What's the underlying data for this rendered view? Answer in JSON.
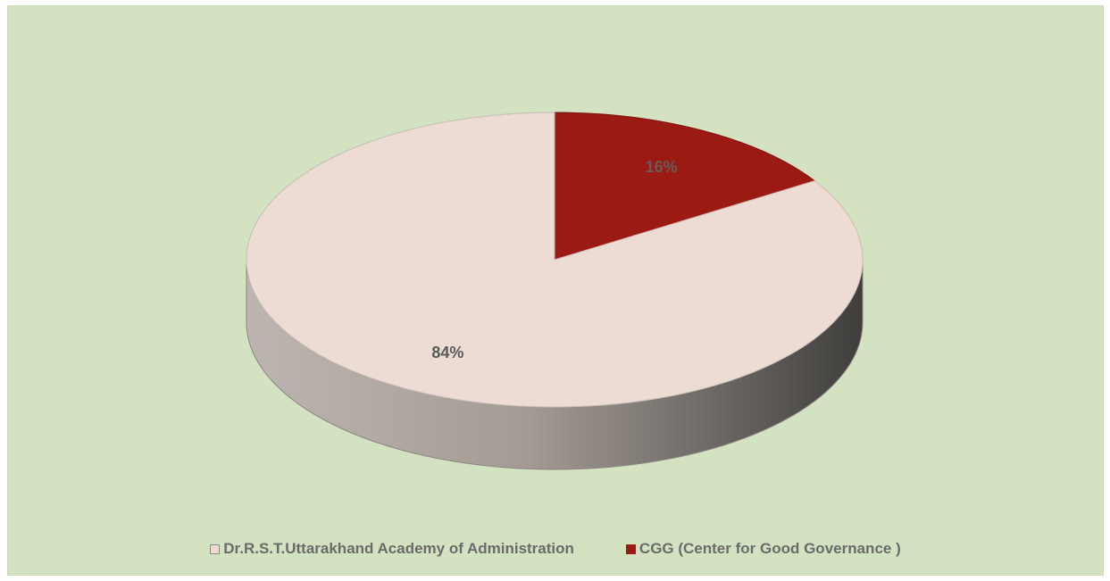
{
  "chart_data": {
    "type": "pie",
    "title": "",
    "slices": [
      {
        "label": "Dr.R.S.T.Uttarakhand Academy of Administration",
        "value": 84,
        "value_label": "84%",
        "color": "#ecdcd3"
      },
      {
        "label": "CGG (Center for Good Governance )",
        "value": 16,
        "value_label": "16%",
        "color": "#9b1a14"
      }
    ],
    "legend_position": "bottom",
    "style": "3d",
    "background_color": "#d3e2c0"
  }
}
